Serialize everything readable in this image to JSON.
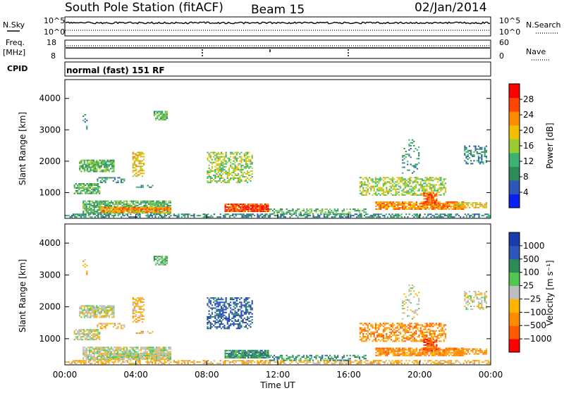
{
  "header": {
    "station": "South Pole Station (fitACF)",
    "beam": "Beam 15",
    "date": "02/Jan/2014"
  },
  "strip1": {
    "left_label": "N.Sky",
    "right_label": "N.Search",
    "left_ticks": [
      "10^5",
      "10^0"
    ],
    "right_ticks": [
      "10^5",
      "10^0"
    ]
  },
  "strip2": {
    "left_label_1": "Freq.",
    "left_label_2": "[MHz]",
    "right_label": "Nave",
    "left_ticks": [
      "18",
      "8"
    ],
    "right_ticks": [
      "60",
      "0"
    ]
  },
  "strip3": {
    "left_label": "CPID",
    "program": "normal (fast) 151 RF"
  },
  "colors": {
    "power_scale": [
      "#0a20f0",
      "#2d56b8",
      "#2e8b57",
      "#3cb371",
      "#9acd32",
      "#f0c000",
      "#ff8c00",
      "#ff4500",
      "#ff0000"
    ],
    "velocity_scale": [
      "#ff0000",
      "#ff5a00",
      "#ff8c00",
      "#ffb400",
      "#bebebe",
      "#50c850",
      "#2e8b57",
      "#2d56b8",
      "#1a3cb0"
    ]
  },
  "chart_data": [
    {
      "type": "heatmap",
      "panel": "power",
      "ylabel": "Slant Range [km]",
      "ylim": [
        180,
        4600
      ],
      "yticks": [
        "1000",
        "2000",
        "3000",
        "4000"
      ],
      "yticks_values": [
        1000,
        2000,
        3000,
        4000
      ],
      "colorbar": {
        "label": "Power [dB]",
        "ticks": [
          "4",
          "8",
          "12",
          "16",
          "20",
          "24",
          "28"
        ],
        "range": [
          0,
          32
        ]
      }
    },
    {
      "type": "heatmap",
      "panel": "velocity",
      "ylabel": "Slant Range [km]",
      "xlabel": "Time UT",
      "ylim": [
        180,
        4600
      ],
      "yticks": [
        "1000",
        "2000",
        "3000",
        "4000"
      ],
      "yticks_values": [
        1000,
        2000,
        3000,
        4000
      ],
      "xticks": [
        "00:00",
        "04:00",
        "08:00",
        "12:00",
        "16:00",
        "20:00",
        "00:00"
      ],
      "colorbar": {
        "label": "Velocity [m s⁻¹]",
        "ticks": [
          "1000",
          "500",
          "100",
          "25",
          "−25",
          "−100",
          "−500",
          "−1000"
        ]
      }
    }
  ]
}
